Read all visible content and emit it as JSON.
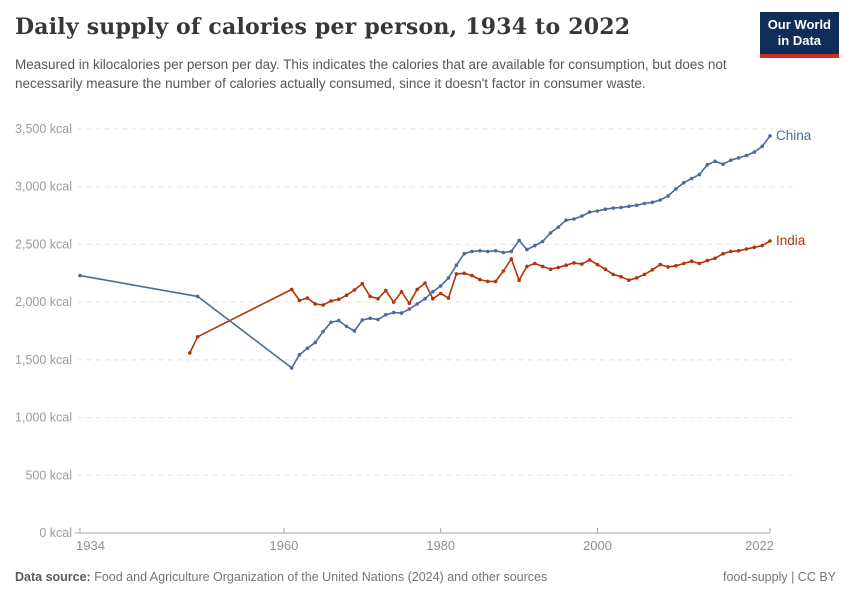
{
  "header": {
    "title": "Daily supply of calories per person, 1934 to 2022",
    "subtitle": "Measured in kilocalories per person per day. This indicates the calories that are available for consumption, but does not necessarily measure the number of calories actually consumed, since it doesn't factor in consumer waste."
  },
  "logo": {
    "line1": "Our World",
    "line2": "in Data",
    "bg_color": "#102d59",
    "accent_color": "#d42b21"
  },
  "footer": {
    "datasource_label": "Data source:",
    "datasource_text": " Food and Agriculture Organization of the United Nations (2024) and other sources",
    "right_text": "food-supply | CC BY"
  },
  "chart_data": {
    "type": "line",
    "title": "Daily supply of calories per person, 1934 to 2022",
    "ylabel": "kcal",
    "xlim": [
      1934,
      2022
    ],
    "ylim": [
      0,
      3500
    ],
    "grid": "dashed-horizontal",
    "legend_position": "end-of-line-labels",
    "x_ticks": [
      1934,
      1960,
      1980,
      2000,
      2022
    ],
    "y_ticks": [
      {
        "value": 0,
        "label": "0 kcal"
      },
      {
        "value": 500,
        "label": "500 kcal"
      },
      {
        "value": 1000,
        "label": "1,000 kcal"
      },
      {
        "value": 1500,
        "label": "1,500 kcal"
      },
      {
        "value": 2000,
        "label": "2,000 kcal"
      },
      {
        "value": 2500,
        "label": "2,500 kcal"
      },
      {
        "value": 3000,
        "label": "3,000 kcal"
      },
      {
        "value": 3500,
        "label": "3,500 kcal"
      }
    ],
    "series": [
      {
        "name": "India",
        "color": "#B13507",
        "points": [
          [
            1948,
            1560
          ],
          [
            1949,
            1700
          ],
          [
            1961,
            2110
          ],
          [
            1962,
            2015
          ],
          [
            1963,
            2035
          ],
          [
            1964,
            1985
          ],
          [
            1965,
            1975
          ],
          [
            1966,
            2010
          ],
          [
            1967,
            2025
          ],
          [
            1968,
            2060
          ],
          [
            1969,
            2105
          ],
          [
            1970,
            2160
          ],
          [
            1971,
            2050
          ],
          [
            1972,
            2030
          ],
          [
            1973,
            2100
          ],
          [
            1974,
            2000
          ],
          [
            1975,
            2090
          ],
          [
            1976,
            1990
          ],
          [
            1977,
            2110
          ],
          [
            1978,
            2165
          ],
          [
            1979,
            2030
          ],
          [
            1980,
            2075
          ],
          [
            1981,
            2035
          ],
          [
            1982,
            2245
          ],
          [
            1983,
            2250
          ],
          [
            1984,
            2230
          ],
          [
            1985,
            2195
          ],
          [
            1986,
            2180
          ],
          [
            1987,
            2180
          ],
          [
            1988,
            2270
          ],
          [
            1989,
            2375
          ],
          [
            1990,
            2190
          ],
          [
            1991,
            2310
          ],
          [
            1992,
            2335
          ],
          [
            1993,
            2310
          ],
          [
            1994,
            2285
          ],
          [
            1995,
            2300
          ],
          [
            1996,
            2320
          ],
          [
            1997,
            2340
          ],
          [
            1998,
            2330
          ],
          [
            1999,
            2365
          ],
          [
            2000,
            2325
          ],
          [
            2001,
            2285
          ],
          [
            2002,
            2240
          ],
          [
            2003,
            2220
          ],
          [
            2004,
            2190
          ],
          [
            2005,
            2210
          ],
          [
            2006,
            2240
          ],
          [
            2007,
            2280
          ],
          [
            2008,
            2325
          ],
          [
            2009,
            2305
          ],
          [
            2010,
            2315
          ],
          [
            2011,
            2335
          ],
          [
            2012,
            2355
          ],
          [
            2013,
            2335
          ],
          [
            2014,
            2360
          ],
          [
            2015,
            2380
          ],
          [
            2016,
            2420
          ],
          [
            2017,
            2440
          ],
          [
            2018,
            2445
          ],
          [
            2019,
            2460
          ],
          [
            2020,
            2475
          ],
          [
            2021,
            2490
          ],
          [
            2022,
            2530
          ]
        ]
      },
      {
        "name": "China",
        "color": "#4C6A9C",
        "points": [
          [
            1934,
            2230
          ],
          [
            1949,
            2050
          ],
          [
            1961,
            1430
          ],
          [
            1962,
            1545
          ],
          [
            1963,
            1600
          ],
          [
            1964,
            1650
          ],
          [
            1965,
            1745
          ],
          [
            1966,
            1825
          ],
          [
            1967,
            1840
          ],
          [
            1968,
            1790
          ],
          [
            1969,
            1750
          ],
          [
            1970,
            1845
          ],
          [
            1971,
            1860
          ],
          [
            1972,
            1850
          ],
          [
            1973,
            1890
          ],
          [
            1974,
            1910
          ],
          [
            1975,
            1905
          ],
          [
            1976,
            1940
          ],
          [
            1977,
            1985
          ],
          [
            1978,
            2030
          ],
          [
            1979,
            2090
          ],
          [
            1980,
            2140
          ],
          [
            1981,
            2210
          ],
          [
            1982,
            2320
          ],
          [
            1983,
            2420
          ],
          [
            1984,
            2440
          ],
          [
            1985,
            2445
          ],
          [
            1986,
            2440
          ],
          [
            1987,
            2445
          ],
          [
            1988,
            2430
          ],
          [
            1989,
            2440
          ],
          [
            1990,
            2535
          ],
          [
            1991,
            2455
          ],
          [
            1992,
            2490
          ],
          [
            1993,
            2525
          ],
          [
            1994,
            2600
          ],
          [
            1995,
            2650
          ],
          [
            1996,
            2710
          ],
          [
            1997,
            2720
          ],
          [
            1998,
            2745
          ],
          [
            1999,
            2780
          ],
          [
            2000,
            2790
          ],
          [
            2001,
            2805
          ],
          [
            2002,
            2815
          ],
          [
            2003,
            2820
          ],
          [
            2004,
            2830
          ],
          [
            2005,
            2840
          ],
          [
            2006,
            2855
          ],
          [
            2007,
            2865
          ],
          [
            2008,
            2885
          ],
          [
            2009,
            2920
          ],
          [
            2010,
            2980
          ],
          [
            2011,
            3035
          ],
          [
            2012,
            3070
          ],
          [
            2013,
            3105
          ],
          [
            2014,
            3190
          ],
          [
            2015,
            3220
          ],
          [
            2016,
            3195
          ],
          [
            2017,
            3230
          ],
          [
            2018,
            3250
          ],
          [
            2019,
            3270
          ],
          [
            2020,
            3300
          ],
          [
            2021,
            3350
          ],
          [
            2022,
            3440
          ]
        ]
      }
    ]
  }
}
